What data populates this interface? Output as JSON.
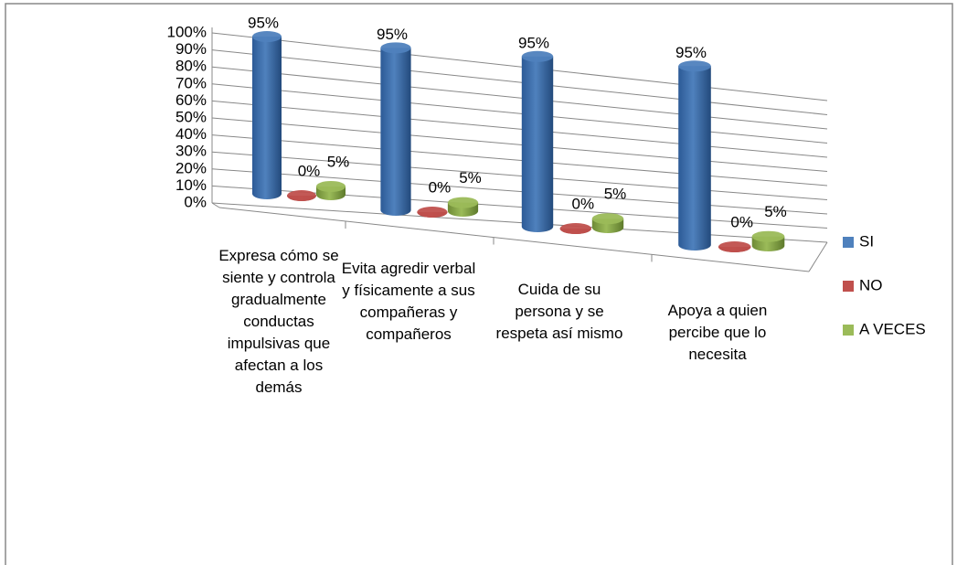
{
  "chart_data": {
    "type": "bar3d",
    "categories": [
      "Expresa cómo se siente y controla gradualmente conductas impulsivas que afectan a los demás",
      "Evita agredir verbal y físicamente a sus compañeras y compañeros",
      "Cuida de su persona y se respeta así mismo",
      "Apoya a quien percibe que lo necesita"
    ],
    "series": [
      {
        "name": "SI",
        "color": "#4f81bd",
        "values": [
          95,
          95,
          95,
          95
        ],
        "value_labels": [
          "95%",
          "95%",
          "95%",
          "95%"
        ]
      },
      {
        "name": "NO",
        "color": "#c0504d",
        "values": [
          0,
          0,
          0,
          0
        ],
        "value_labels": [
          "0%",
          "0%",
          "0%",
          "0%"
        ]
      },
      {
        "name": "A VECES",
        "color": "#9bbb59",
        "values": [
          5,
          5,
          5,
          5
        ],
        "value_labels": [
          "5%",
          "5%",
          "5%",
          "5%"
        ]
      }
    ],
    "ylim": [
      0,
      100
    ],
    "yticks": [
      {
        "value": 0,
        "label": "0%"
      },
      {
        "value": 10,
        "label": "10%"
      },
      {
        "value": 20,
        "label": "20%"
      },
      {
        "value": 30,
        "label": "30%"
      },
      {
        "value": 40,
        "label": "40%"
      },
      {
        "value": 50,
        "label": "50%"
      },
      {
        "value": 60,
        "label": "60%"
      },
      {
        "value": 70,
        "label": "70%"
      },
      {
        "value": 80,
        "label": "80%"
      },
      {
        "value": 90,
        "label": "90%"
      },
      {
        "value": 100,
        "label": "100%"
      }
    ],
    "grid": true,
    "legend": "right"
  }
}
